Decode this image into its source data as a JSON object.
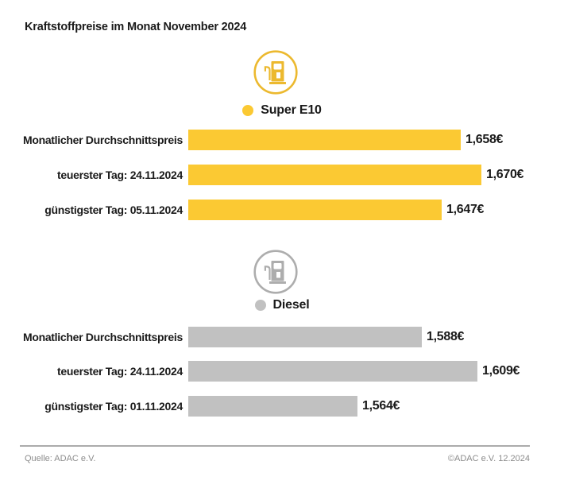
{
  "title": "Kraftstoffpreise im Monat November 2024",
  "colors": {
    "e10_bar": "#fbc933",
    "e10_icon": "#ecb92f",
    "diesel_bar": "#c1c1c1",
    "diesel_icon": "#adadad",
    "text": "#1a1a1a",
    "footer_text": "#8c8c8c"
  },
  "chart_data": [
    {
      "type": "bar",
      "orientation": "horizontal",
      "title": "Super E10",
      "icon": "fuel-pump",
      "color": "#fbc933",
      "icon_color": "#ecb92f",
      "categories": [
        "Monatlicher Durchschnittspreis",
        "teuerster Tag: 24.11.2024",
        "günstigster Tag: 05.11.2024"
      ],
      "values": [
        1.658,
        1.67,
        1.647
      ],
      "value_labels": [
        "1,658€",
        "1,670€",
        "1,647€"
      ],
      "unit": "€",
      "xlim": [
        1.5,
        1.72
      ],
      "grid": false,
      "legend_position": "top-center"
    },
    {
      "type": "bar",
      "orientation": "horizontal",
      "title": "Diesel",
      "icon": "fuel-pump",
      "color": "#c1c1c1",
      "icon_color": "#adadad",
      "categories": [
        "Monatlicher Durchschnittspreis",
        "teuerster Tag: 24.11.2024",
        "günstigster Tag: 01.11.2024"
      ],
      "values": [
        1.588,
        1.609,
        1.564
      ],
      "value_labels": [
        "1,588€",
        "1,609€",
        "1,564€"
      ],
      "unit": "€",
      "xlim": [
        1.5,
        1.643
      ],
      "grid": false,
      "legend_position": "top-center"
    }
  ],
  "footer": {
    "source": "Quelle: ADAC e.V.",
    "copyright": "©ADAC e.V. 12.2024"
  }
}
